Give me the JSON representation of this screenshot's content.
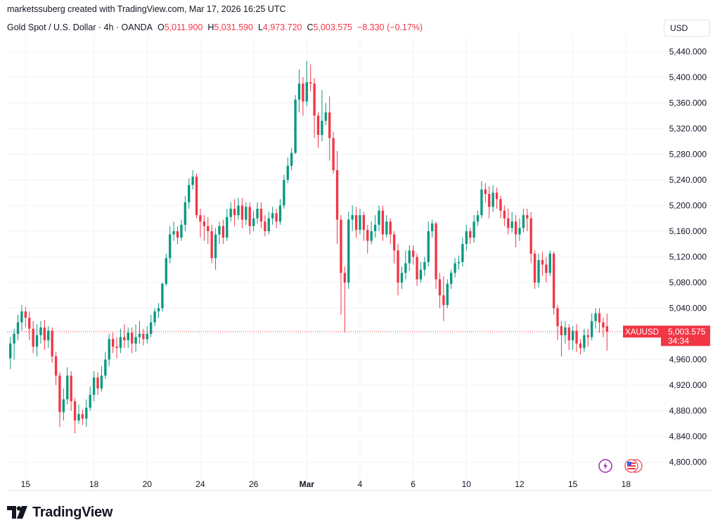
{
  "header": {
    "author_line": "marketssuberg created with TradingView.com, Mar 17, 2026 16:25 UTC",
    "symbol_desc": "Gold Spot / U.S. Dollar · 4h · OANDA",
    "open_label": "O",
    "open_value": "5,011.900",
    "high_label": "H",
    "high_value": "5,031.590",
    "low_label": "L",
    "low_value": "4,973.720",
    "close_label": "C",
    "close_value": "5,003.575",
    "change_value": "−8.330 (−0.17%)"
  },
  "currency_button": "USD",
  "price_tag": {
    "symbol": "XAUUSD",
    "price": "5,003.575",
    "countdown": "34:34"
  },
  "footer": {
    "brand": "TradingView"
  },
  "colors": {
    "up": "#089981",
    "down": "#f23645",
    "grid": "#f0f3fa",
    "text": "#131722",
    "lightning_icon": "#9c27b0"
  },
  "chart_data": {
    "type": "candlestick",
    "title": "Gold Spot / U.S. Dollar · 4h · OANDA",
    "ylabel": "USD",
    "ylim": [
      4780,
      5460
    ],
    "y_ticks": [
      4800,
      4840,
      4880,
      4920,
      4960,
      5000,
      5040,
      5080,
      5120,
      5160,
      5200,
      5240,
      5280,
      5320,
      5360,
      5400,
      5440
    ],
    "y_tick_labels": [
      "4,800.000",
      "4,840.000",
      "4,880.000",
      "4,920.000",
      "4,960.000",
      "5,000.000",
      "5,040.000",
      "5,080.000",
      "5,120.000",
      "5,160.000",
      "5,200.000",
      "5,240.000",
      "5,280.000",
      "5,320.000",
      "5,360.000",
      "5,400.000",
      "5,440.000"
    ],
    "x_tick_labels": [
      "15",
      "18",
      "20",
      "24",
      "26",
      "Mar",
      "4",
      "6",
      "10",
      "12",
      "15",
      "18"
    ],
    "x_tick_index": [
      4,
      22,
      36,
      50,
      64,
      78,
      92,
      106,
      120,
      134,
      148,
      162
    ],
    "grid": true,
    "last_price": 5003.575,
    "ohlc": [
      [
        4962,
        4985,
        4945,
        4995
      ],
      [
        4985,
        5000,
        4960,
        5008
      ],
      [
        5000,
        5018,
        4990,
        5030
      ],
      [
        5018,
        5035,
        5005,
        5045
      ],
      [
        5035,
        5025,
        5010,
        5042
      ],
      [
        5025,
        5008,
        4990,
        5035
      ],
      [
        5008,
        4980,
        4970,
        5020
      ],
      [
        4980,
        4998,
        4965,
        5015
      ],
      [
        4998,
        5010,
        4985,
        5020
      ],
      [
        5010,
        4990,
        4975,
        5022
      ],
      [
        4990,
        5005,
        4978,
        5012
      ],
      [
        5005,
        4965,
        4955,
        5010
      ],
      [
        4965,
        4935,
        4920,
        4972
      ],
      [
        4935,
        4878,
        4855,
        4940
      ],
      [
        4878,
        4898,
        4865,
        4915
      ],
      [
        4898,
        4935,
        4890,
        4948
      ],
      [
        4935,
        4895,
        4880,
        4942
      ],
      [
        4895,
        4865,
        4845,
        4900
      ],
      [
        4865,
        4875,
        4860,
        4890
      ],
      [
        4875,
        4868,
        4858,
        4882
      ],
      [
        4868,
        4885,
        4855,
        4898
      ],
      [
        4885,
        4905,
        4880,
        4918
      ],
      [
        4905,
        4932,
        4895,
        4942
      ],
      [
        4932,
        4915,
        4905,
        4940
      ],
      [
        4915,
        4935,
        4910,
        4950
      ],
      [
        4935,
        4960,
        4930,
        4972
      ],
      [
        4960,
        4992,
        4950,
        5000
      ],
      [
        4992,
        4980,
        4970,
        5002
      ],
      [
        4980,
        4978,
        4962,
        4995
      ],
      [
        4978,
        4995,
        4970,
        5008
      ],
      [
        4995,
        4990,
        4978,
        5015
      ],
      [
        4990,
        5002,
        4978,
        5010
      ],
      [
        5002,
        4985,
        4970,
        5010
      ],
      [
        4985,
        4995,
        4972,
        5015
      ],
      [
        4995,
        5000,
        4985,
        5020
      ],
      [
        5000,
        4992,
        4982,
        5008
      ],
      [
        4992,
        5000,
        4985,
        5012
      ],
      [
        5000,
        5018,
        4995,
        5030
      ],
      [
        5018,
        5035,
        5012,
        5040
      ],
      [
        5035,
        5040,
        5025,
        5048
      ],
      [
        5040,
        5078,
        5035,
        5080
      ],
      [
        5078,
        5118,
        5075,
        5125
      ],
      [
        5118,
        5155,
        5110,
        5168
      ],
      [
        5155,
        5160,
        5145,
        5175
      ],
      [
        5160,
        5150,
        5140,
        5168
      ],
      [
        5150,
        5170,
        5145,
        5178
      ],
      [
        5170,
        5205,
        5160,
        5215
      ],
      [
        5205,
        5232,
        5195,
        5242
      ],
      [
        5232,
        5245,
        5225,
        5255
      ],
      [
        5245,
        5185,
        5180,
        5250
      ],
      [
        5185,
        5175,
        5150,
        5195
      ],
      [
        5175,
        5168,
        5145,
        5185
      ],
      [
        5168,
        5160,
        5140,
        5182
      ],
      [
        5160,
        5118,
        5110,
        5170
      ],
      [
        5118,
        5155,
        5100,
        5165
      ],
      [
        5155,
        5168,
        5140,
        5175
      ],
      [
        5168,
        5150,
        5140,
        5178
      ],
      [
        5150,
        5182,
        5145,
        5195
      ],
      [
        5182,
        5195,
        5175,
        5205
      ],
      [
        5195,
        5185,
        5168,
        5210
      ],
      [
        5185,
        5200,
        5178,
        5212
      ],
      [
        5200,
        5178,
        5165,
        5212
      ],
      [
        5178,
        5198,
        5170,
        5205
      ],
      [
        5198,
        5168,
        5155,
        5205
      ],
      [
        5168,
        5180,
        5160,
        5192
      ],
      [
        5180,
        5195,
        5172,
        5205
      ],
      [
        5195,
        5175,
        5165,
        5205
      ],
      [
        5175,
        5160,
        5152,
        5185
      ],
      [
        5160,
        5180,
        5155,
        5190
      ],
      [
        5180,
        5188,
        5170,
        5198
      ],
      [
        5188,
        5175,
        5165,
        5195
      ],
      [
        5175,
        5200,
        5170,
        5210
      ],
      [
        5200,
        5240,
        5195,
        5248
      ],
      [
        5240,
        5262,
        5235,
        5275
      ],
      [
        5262,
        5282,
        5255,
        5290
      ],
      [
        5282,
        5365,
        5280,
        5372
      ],
      [
        5365,
        5390,
        5345,
        5412
      ],
      [
        5390,
        5362,
        5340,
        5400
      ],
      [
        5362,
        5392,
        5355,
        5425
      ],
      [
        5392,
        5390,
        5378,
        5420
      ],
      [
        5390,
        5340,
        5305,
        5398
      ],
      [
        5340,
        5310,
        5290,
        5345
      ],
      [
        5310,
        5332,
        5300,
        5380
      ],
      [
        5332,
        5345,
        5325,
        5360
      ],
      [
        5345,
        5305,
        5270,
        5370
      ],
      [
        5305,
        5255,
        5250,
        5315
      ],
      [
        5255,
        5178,
        5140,
        5285
      ],
      [
        5178,
        5095,
        5030,
        5185
      ],
      [
        5095,
        5080,
        5002,
        5105
      ],
      [
        5080,
        5178,
        5070,
        5190
      ],
      [
        5178,
        5185,
        5160,
        5200
      ],
      [
        5185,
        5162,
        5150,
        5198
      ],
      [
        5162,
        5185,
        5155,
        5195
      ],
      [
        5185,
        5162,
        5145,
        5190
      ],
      [
        5162,
        5145,
        5125,
        5170
      ],
      [
        5145,
        5160,
        5140,
        5175
      ],
      [
        5160,
        5170,
        5150,
        5185
      ],
      [
        5170,
        5192,
        5160,
        5200
      ],
      [
        5192,
        5155,
        5145,
        5200
      ],
      [
        5155,
        5175,
        5150,
        5185
      ],
      [
        5175,
        5155,
        5140,
        5180
      ],
      [
        5155,
        5130,
        5110,
        5160
      ],
      [
        5130,
        5080,
        5060,
        5140
      ],
      [
        5080,
        5095,
        5070,
        5105
      ],
      [
        5095,
        5110,
        5085,
        5130
      ],
      [
        5110,
        5130,
        5098,
        5138
      ],
      [
        5130,
        5120,
        5108,
        5138
      ],
      [
        5120,
        5085,
        5075,
        5125
      ],
      [
        5085,
        5100,
        5080,
        5112
      ],
      [
        5100,
        5112,
        5090,
        5120
      ],
      [
        5112,
        5160,
        5105,
        5175
      ],
      [
        5160,
        5172,
        5150,
        5178
      ],
      [
        5172,
        5085,
        5070,
        5175
      ],
      [
        5085,
        5060,
        5040,
        5095
      ],
      [
        5060,
        5045,
        5020,
        5090
      ],
      [
        5045,
        5078,
        5040,
        5085
      ],
      [
        5078,
        5095,
        5070,
        5100
      ],
      [
        5095,
        5110,
        5088,
        5118
      ],
      [
        5110,
        5112,
        5100,
        5122
      ],
      [
        5112,
        5140,
        5105,
        5150
      ],
      [
        5140,
        5160,
        5130,
        5170
      ],
      [
        5160,
        5150,
        5140,
        5165
      ],
      [
        5150,
        5175,
        5142,
        5185
      ],
      [
        5175,
        5185,
        5168,
        5192
      ],
      [
        5185,
        5225,
        5180,
        5238
      ],
      [
        5225,
        5218,
        5205,
        5235
      ],
      [
        5218,
        5198,
        5180,
        5230
      ],
      [
        5198,
        5220,
        5190,
        5232
      ],
      [
        5220,
        5210,
        5195,
        5228
      ],
      [
        5210,
        5192,
        5180,
        5215
      ],
      [
        5192,
        5180,
        5168,
        5200
      ],
      [
        5180,
        5165,
        5155,
        5195
      ],
      [
        5165,
        5175,
        5158,
        5190
      ],
      [
        5175,
        5155,
        5135,
        5185
      ],
      [
        5155,
        5165,
        5145,
        5180
      ],
      [
        5165,
        5185,
        5158,
        5195
      ],
      [
        5185,
        5180,
        5160,
        5195
      ],
      [
        5180,
        5125,
        5110,
        5190
      ],
      [
        5125,
        5080,
        5070,
        5130
      ],
      [
        5080,
        5115,
        5072,
        5125
      ],
      [
        5115,
        5108,
        5090,
        5128
      ],
      [
        5108,
        5095,
        5080,
        5120
      ],
      [
        5095,
        5125,
        5090,
        5130
      ],
      [
        5125,
        5040,
        5030,
        5128
      ],
      [
        5040,
        5012,
        4990,
        5045
      ],
      [
        5012,
        4998,
        4965,
        5020
      ],
      [
        4998,
        5010,
        4985,
        5020
      ],
      [
        5010,
        4990,
        4975,
        5015
      ],
      [
        4990,
        5005,
        4975,
        5012
      ],
      [
        5005,
        4985,
        4972,
        5015
      ],
      [
        4985,
        4978,
        4968,
        4992
      ],
      [
        4978,
        4998,
        4972,
        5008
      ],
      [
        4998,
        4995,
        4980,
        5008
      ],
      [
        4995,
        5020,
        4990,
        5032
      ],
      [
        5020,
        5032,
        5008,
        5040
      ],
      [
        5032,
        5018,
        5002,
        5040
      ],
      [
        5018,
        5010,
        4995,
        5025
      ],
      [
        5011.9,
        5003.575,
        4973.72,
        5031.59
      ]
    ]
  }
}
